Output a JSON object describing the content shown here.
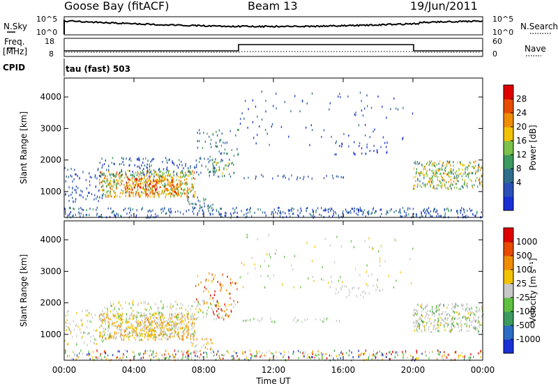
{
  "header": {
    "station": "Goose Bay (fitACF)",
    "beam": "Beam 13",
    "date": "19/Jun/2011"
  },
  "top_panels": {
    "nsky_label": "N.Sky",
    "nsearch_label": "N.Search",
    "noise_ticks": [
      "10^5",
      "10^0"
    ],
    "freq_label_1": "Freq.",
    "freq_label_2": "[MHz]",
    "freq_ticks": [
      "18",
      "8"
    ],
    "nave_label": "Nave",
    "nave_ticks": [
      "60",
      "0"
    ],
    "cpid_label": "CPID",
    "cpid_value": "tau (fast) 503"
  },
  "chart_data": [
    {
      "type": "heatmap",
      "name": "power",
      "ylabel": "Slant Range [km]",
      "ylim": [
        180,
        4600
      ],
      "yticks": [
        "1000",
        "2000",
        "3000",
        "4000"
      ],
      "colorbar_label": "Power [dB]",
      "colorbar_ticks": [
        "28",
        "24",
        "20",
        "16",
        "12",
        "8",
        "4"
      ],
      "colors": [
        "#1a2fd6",
        "#2b50b8",
        "#2f6e8a",
        "#3d9a5e",
        "#7bc14a",
        "#f2c200",
        "#f08c00",
        "#e84b00",
        "#e00000"
      ]
    },
    {
      "type": "heatmap",
      "name": "velocity",
      "ylabel": "Slant Range [km]",
      "ylim": [
        180,
        4600
      ],
      "yticks": [
        "1000",
        "2000",
        "3000",
        "4000"
      ],
      "colorbar_label": "Velocity [m s⁻¹]",
      "colorbar_ticks": [
        "1000",
        "500",
        "100",
        "25",
        "-25",
        "-100",
        "-500",
        "-1000"
      ],
      "colors": [
        "#1a2fd6",
        "#2b6cc4",
        "#3d9a5e",
        "#5fc040",
        "#c8c8c8",
        "#f2c200",
        "#f08c00",
        "#e84b00",
        "#e00000"
      ]
    }
  ],
  "xaxis": {
    "label": "Time UT",
    "ticks": [
      "00:00",
      "04:00",
      "08:00",
      "12:00",
      "16:00",
      "20:00",
      "00:00"
    ]
  }
}
